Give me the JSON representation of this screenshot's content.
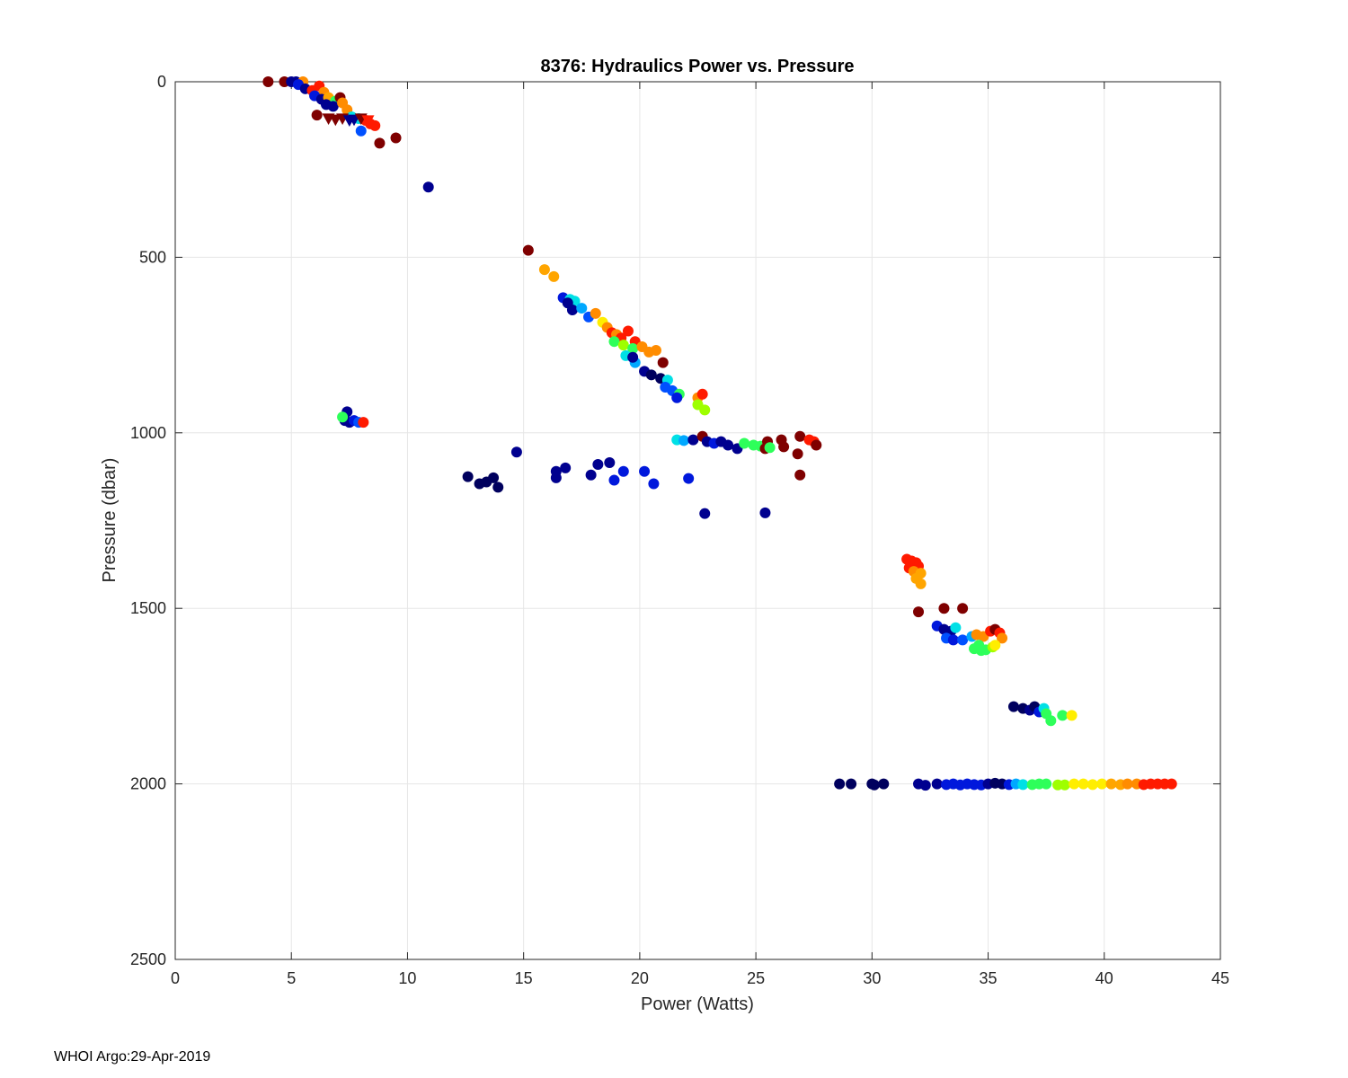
{
  "footer": "WHOI Argo:29-Apr-2019",
  "chart_data": {
    "type": "scatter",
    "title": "8376: Hydraulics Power vs. Pressure",
    "xlabel": "Power (Watts)",
    "ylabel": "Pressure (dbar)",
    "xlim": [
      0,
      45
    ],
    "ylim": [
      0,
      2500
    ],
    "y_reversed": true,
    "xticks": [
      0,
      5,
      10,
      15,
      20,
      25,
      30,
      35,
      40,
      45
    ],
    "yticks": [
      0,
      500,
      1000,
      1500,
      2000,
      2500
    ],
    "grid": true,
    "colors": {
      "darkred": "#7f0000",
      "red": "#ff1a00",
      "orange": "#ff8c00",
      "amber": "#ffa500",
      "yellow": "#ffee00",
      "lime": "#9eff00",
      "green": "#2eff5a",
      "cyan": "#00ffd5",
      "teal": "#00e0e6",
      "sky": "#00a8ff",
      "blue": "#0050ff",
      "royal": "#0018dc",
      "navy": "#00008f",
      "midnight": "#00005e"
    },
    "points": [
      {
        "x": 4.0,
        "y": 0,
        "c": "darkred"
      },
      {
        "x": 4.7,
        "y": 0,
        "c": "darkred"
      },
      {
        "x": 5.0,
        "y": 0,
        "c": "navy"
      },
      {
        "x": 5.2,
        "y": 0,
        "c": "navy"
      },
      {
        "x": 5.5,
        "y": 0,
        "c": "orange"
      },
      {
        "x": 5.3,
        "y": 8,
        "c": "royal"
      },
      {
        "x": 5.6,
        "y": 20,
        "c": "navy"
      },
      {
        "x": 5.9,
        "y": 25,
        "c": "red"
      },
      {
        "x": 6.2,
        "y": 12,
        "c": "red"
      },
      {
        "x": 6.4,
        "y": 30,
        "c": "orange"
      },
      {
        "x": 6.0,
        "y": 40,
        "c": "royal"
      },
      {
        "x": 6.3,
        "y": 50,
        "c": "navy"
      },
      {
        "x": 6.6,
        "y": 45,
        "c": "amber"
      },
      {
        "x": 6.9,
        "y": 55,
        "c": "green"
      },
      {
        "x": 7.1,
        "y": 45,
        "c": "darkred"
      },
      {
        "x": 6.5,
        "y": 65,
        "c": "navy"
      },
      {
        "x": 6.8,
        "y": 70,
        "c": "navy"
      },
      {
        "x": 7.2,
        "y": 60,
        "c": "orange"
      },
      {
        "x": 7.4,
        "y": 80,
        "c": "orange"
      },
      {
        "x": 6.1,
        "y": 95,
        "c": "darkred"
      },
      {
        "x": 7.6,
        "y": 100,
        "c": "teal"
      },
      {
        "x": 7.9,
        "y": 105,
        "c": "teal"
      },
      {
        "x": 8.2,
        "y": 110,
        "c": "red"
      },
      {
        "x": 8.4,
        "y": 120,
        "c": "red"
      },
      {
        "x": 8.6,
        "y": 125,
        "c": "red"
      },
      {
        "x": 8.0,
        "y": 140,
        "c": "blue"
      },
      {
        "x": 9.5,
        "y": 160,
        "c": "darkred"
      },
      {
        "x": 8.8,
        "y": 175,
        "c": "darkred"
      },
      {
        "x": 10.9,
        "y": 300,
        "c": "navy"
      },
      {
        "x": 7.4,
        "y": 940,
        "c": "navy"
      },
      {
        "x": 7.3,
        "y": 965,
        "c": "navy"
      },
      {
        "x": 7.5,
        "y": 970,
        "c": "navy"
      },
      {
        "x": 7.7,
        "y": 965,
        "c": "royal"
      },
      {
        "x": 7.9,
        "y": 970,
        "c": "blue"
      },
      {
        "x": 8.1,
        "y": 970,
        "c": "red"
      },
      {
        "x": 7.2,
        "y": 955,
        "c": "green"
      },
      {
        "x": 15.2,
        "y": 480,
        "c": "darkred"
      },
      {
        "x": 15.9,
        "y": 535,
        "c": "amber"
      },
      {
        "x": 16.3,
        "y": 555,
        "c": "amber"
      },
      {
        "x": 16.7,
        "y": 615,
        "c": "royal"
      },
      {
        "x": 17.0,
        "y": 620,
        "c": "teal"
      },
      {
        "x": 17.2,
        "y": 625,
        "c": "teal"
      },
      {
        "x": 16.9,
        "y": 630,
        "c": "navy"
      },
      {
        "x": 17.1,
        "y": 650,
        "c": "navy"
      },
      {
        "x": 17.5,
        "y": 645,
        "c": "sky"
      },
      {
        "x": 17.8,
        "y": 670,
        "c": "blue"
      },
      {
        "x": 18.1,
        "y": 660,
        "c": "orange"
      },
      {
        "x": 18.4,
        "y": 685,
        "c": "yellow"
      },
      {
        "x": 18.6,
        "y": 700,
        "c": "orange"
      },
      {
        "x": 18.8,
        "y": 715,
        "c": "red"
      },
      {
        "x": 19.0,
        "y": 720,
        "c": "orange"
      },
      {
        "x": 19.2,
        "y": 730,
        "c": "red"
      },
      {
        "x": 19.5,
        "y": 710,
        "c": "red"
      },
      {
        "x": 19.8,
        "y": 740,
        "c": "red"
      },
      {
        "x": 18.9,
        "y": 740,
        "c": "green"
      },
      {
        "x": 19.3,
        "y": 750,
        "c": "lime"
      },
      {
        "x": 19.7,
        "y": 760,
        "c": "green"
      },
      {
        "x": 20.1,
        "y": 755,
        "c": "orange"
      },
      {
        "x": 20.4,
        "y": 770,
        "c": "orange"
      },
      {
        "x": 20.7,
        "y": 765,
        "c": "orange"
      },
      {
        "x": 19.4,
        "y": 780,
        "c": "teal"
      },
      {
        "x": 19.8,
        "y": 800,
        "c": "sky"
      },
      {
        "x": 19.7,
        "y": 785,
        "c": "navy"
      },
      {
        "x": 21.0,
        "y": 800,
        "c": "darkred"
      },
      {
        "x": 20.2,
        "y": 825,
        "c": "navy"
      },
      {
        "x": 20.5,
        "y": 835,
        "c": "midnight"
      },
      {
        "x": 20.9,
        "y": 845,
        "c": "midnight"
      },
      {
        "x": 21.2,
        "y": 850,
        "c": "teal"
      },
      {
        "x": 21.1,
        "y": 870,
        "c": "blue"
      },
      {
        "x": 21.4,
        "y": 880,
        "c": "blue"
      },
      {
        "x": 21.7,
        "y": 890,
        "c": "green"
      },
      {
        "x": 21.6,
        "y": 900,
        "c": "royal"
      },
      {
        "x": 22.5,
        "y": 900,
        "c": "orange"
      },
      {
        "x": 22.7,
        "y": 890,
        "c": "red"
      },
      {
        "x": 22.5,
        "y": 920,
        "c": "lime"
      },
      {
        "x": 22.8,
        "y": 935,
        "c": "lime"
      },
      {
        "x": 21.6,
        "y": 1020,
        "c": "teal"
      },
      {
        "x": 21.9,
        "y": 1022,
        "c": "sky"
      },
      {
        "x": 22.3,
        "y": 1020,
        "c": "navy"
      },
      {
        "x": 22.7,
        "y": 1010,
        "c": "darkred"
      },
      {
        "x": 22.9,
        "y": 1025,
        "c": "navy"
      },
      {
        "x": 23.2,
        "y": 1030,
        "c": "royal"
      },
      {
        "x": 23.5,
        "y": 1025,
        "c": "navy"
      },
      {
        "x": 23.8,
        "y": 1035,
        "c": "navy"
      },
      {
        "x": 24.2,
        "y": 1045,
        "c": "navy"
      },
      {
        "x": 24.5,
        "y": 1030,
        "c": "green"
      },
      {
        "x": 24.9,
        "y": 1035,
        "c": "green"
      },
      {
        "x": 25.2,
        "y": 1038,
        "c": "green"
      },
      {
        "x": 25.4,
        "y": 1045,
        "c": "darkred"
      },
      {
        "x": 25.5,
        "y": 1025,
        "c": "darkred"
      },
      {
        "x": 25.6,
        "y": 1042,
        "c": "green"
      },
      {
        "x": 26.1,
        "y": 1020,
        "c": "darkred"
      },
      {
        "x": 26.2,
        "y": 1040,
        "c": "darkred"
      },
      {
        "x": 26.8,
        "y": 1060,
        "c": "darkred"
      },
      {
        "x": 26.9,
        "y": 1010,
        "c": "darkred"
      },
      {
        "x": 27.3,
        "y": 1020,
        "c": "red"
      },
      {
        "x": 27.5,
        "y": 1025,
        "c": "red"
      },
      {
        "x": 27.6,
        "y": 1035,
        "c": "darkred"
      },
      {
        "x": 26.9,
        "y": 1120,
        "c": "darkred"
      },
      {
        "x": 14.7,
        "y": 1055,
        "c": "navy"
      },
      {
        "x": 12.6,
        "y": 1125,
        "c": "midnight"
      },
      {
        "x": 13.1,
        "y": 1145,
        "c": "midnight"
      },
      {
        "x": 13.4,
        "y": 1140,
        "c": "midnight"
      },
      {
        "x": 13.7,
        "y": 1128,
        "c": "midnight"
      },
      {
        "x": 13.9,
        "y": 1155,
        "c": "midnight"
      },
      {
        "x": 16.4,
        "y": 1110,
        "c": "navy"
      },
      {
        "x": 16.4,
        "y": 1128,
        "c": "navy"
      },
      {
        "x": 16.8,
        "y": 1100,
        "c": "navy"
      },
      {
        "x": 17.9,
        "y": 1120,
        "c": "navy"
      },
      {
        "x": 18.2,
        "y": 1090,
        "c": "navy"
      },
      {
        "x": 18.7,
        "y": 1085,
        "c": "navy"
      },
      {
        "x": 18.9,
        "y": 1135,
        "c": "royal"
      },
      {
        "x": 19.3,
        "y": 1110,
        "c": "royal"
      },
      {
        "x": 20.2,
        "y": 1110,
        "c": "royal"
      },
      {
        "x": 20.6,
        "y": 1145,
        "c": "royal"
      },
      {
        "x": 22.1,
        "y": 1130,
        "c": "royal"
      },
      {
        "x": 22.8,
        "y": 1230,
        "c": "navy"
      },
      {
        "x": 25.4,
        "y": 1228,
        "c": "navy"
      },
      {
        "x": 31.5,
        "y": 1360,
        "c": "red"
      },
      {
        "x": 31.7,
        "y": 1365,
        "c": "red"
      },
      {
        "x": 31.9,
        "y": 1370,
        "c": "red"
      },
      {
        "x": 32.0,
        "y": 1380,
        "c": "red"
      },
      {
        "x": 31.6,
        "y": 1385,
        "c": "red"
      },
      {
        "x": 31.8,
        "y": 1395,
        "c": "orange"
      },
      {
        "x": 32.1,
        "y": 1400,
        "c": "amber"
      },
      {
        "x": 31.9,
        "y": 1415,
        "c": "amber"
      },
      {
        "x": 32.1,
        "y": 1430,
        "c": "amber"
      },
      {
        "x": 32.0,
        "y": 1510,
        "c": "darkred"
      },
      {
        "x": 33.1,
        "y": 1500,
        "c": "darkred"
      },
      {
        "x": 33.9,
        "y": 1500,
        "c": "darkred"
      },
      {
        "x": 32.8,
        "y": 1550,
        "c": "royal"
      },
      {
        "x": 33.1,
        "y": 1560,
        "c": "navy"
      },
      {
        "x": 33.4,
        "y": 1565,
        "c": "navy"
      },
      {
        "x": 33.6,
        "y": 1555,
        "c": "teal"
      },
      {
        "x": 33.2,
        "y": 1585,
        "c": "blue"
      },
      {
        "x": 33.5,
        "y": 1590,
        "c": "royal"
      },
      {
        "x": 33.9,
        "y": 1590,
        "c": "blue"
      },
      {
        "x": 34.3,
        "y": 1580,
        "c": "sky"
      },
      {
        "x": 34.5,
        "y": 1575,
        "c": "orange"
      },
      {
        "x": 34.8,
        "y": 1580,
        "c": "orange"
      },
      {
        "x": 35.1,
        "y": 1565,
        "c": "red"
      },
      {
        "x": 35.3,
        "y": 1560,
        "c": "darkred"
      },
      {
        "x": 35.5,
        "y": 1570,
        "c": "red"
      },
      {
        "x": 35.6,
        "y": 1585,
        "c": "orange"
      },
      {
        "x": 34.4,
        "y": 1615,
        "c": "green"
      },
      {
        "x": 34.7,
        "y": 1620,
        "c": "green"
      },
      {
        "x": 34.9,
        "y": 1618,
        "c": "green"
      },
      {
        "x": 35.2,
        "y": 1610,
        "c": "lime"
      },
      {
        "x": 35.3,
        "y": 1605,
        "c": "yellow"
      },
      {
        "x": 34.6,
        "y": 1605,
        "c": "green"
      },
      {
        "x": 36.1,
        "y": 1780,
        "c": "midnight"
      },
      {
        "x": 36.5,
        "y": 1785,
        "c": "midnight"
      },
      {
        "x": 36.8,
        "y": 1790,
        "c": "navy"
      },
      {
        "x": 37.0,
        "y": 1780,
        "c": "midnight"
      },
      {
        "x": 37.2,
        "y": 1795,
        "c": "royal"
      },
      {
        "x": 37.4,
        "y": 1785,
        "c": "teal"
      },
      {
        "x": 37.5,
        "y": 1800,
        "c": "green"
      },
      {
        "x": 37.7,
        "y": 1820,
        "c": "green"
      },
      {
        "x": 38.2,
        "y": 1805,
        "c": "green"
      },
      {
        "x": 38.6,
        "y": 1805,
        "c": "yellow"
      },
      {
        "x": 28.6,
        "y": 2000,
        "c": "midnight"
      },
      {
        "x": 29.1,
        "y": 2000,
        "c": "midnight"
      },
      {
        "x": 30.0,
        "y": 2000,
        "c": "midnight"
      },
      {
        "x": 30.1,
        "y": 2003,
        "c": "midnight"
      },
      {
        "x": 30.5,
        "y": 2000,
        "c": "midnight"
      },
      {
        "x": 32.0,
        "y": 2000,
        "c": "navy"
      },
      {
        "x": 32.3,
        "y": 2004,
        "c": "navy"
      },
      {
        "x": 32.8,
        "y": 2000,
        "c": "navy"
      },
      {
        "x": 33.2,
        "y": 2002,
        "c": "royal"
      },
      {
        "x": 33.5,
        "y": 2000,
        "c": "royal"
      },
      {
        "x": 33.8,
        "y": 2003,
        "c": "royal"
      },
      {
        "x": 34.1,
        "y": 2000,
        "c": "royal"
      },
      {
        "x": 34.4,
        "y": 2002,
        "c": "royal"
      },
      {
        "x": 34.7,
        "y": 2003,
        "c": "royal"
      },
      {
        "x": 35.0,
        "y": 2000,
        "c": "navy"
      },
      {
        "x": 35.3,
        "y": 1998,
        "c": "midnight"
      },
      {
        "x": 35.6,
        "y": 2000,
        "c": "midnight"
      },
      {
        "x": 35.9,
        "y": 2002,
        "c": "royal"
      },
      {
        "x": 36.2,
        "y": 2000,
        "c": "sky"
      },
      {
        "x": 36.5,
        "y": 2002,
        "c": "teal"
      },
      {
        "x": 36.9,
        "y": 2002,
        "c": "green"
      },
      {
        "x": 37.2,
        "y": 2000,
        "c": "green"
      },
      {
        "x": 37.5,
        "y": 2000,
        "c": "green"
      },
      {
        "x": 38.0,
        "y": 2003,
        "c": "lime"
      },
      {
        "x": 38.3,
        "y": 2003,
        "c": "lime"
      },
      {
        "x": 38.7,
        "y": 2000,
        "c": "yellow"
      },
      {
        "x": 39.1,
        "y": 2000,
        "c": "yellow"
      },
      {
        "x": 39.5,
        "y": 2002,
        "c": "yellow"
      },
      {
        "x": 39.9,
        "y": 2000,
        "c": "yellow"
      },
      {
        "x": 40.3,
        "y": 2000,
        "c": "amber"
      },
      {
        "x": 40.7,
        "y": 2002,
        "c": "amber"
      },
      {
        "x": 41.0,
        "y": 2000,
        "c": "orange"
      },
      {
        "x": 41.4,
        "y": 2000,
        "c": "orange"
      },
      {
        "x": 41.7,
        "y": 2002,
        "c": "red"
      },
      {
        "x": 42.0,
        "y": 2000,
        "c": "red"
      },
      {
        "x": 42.3,
        "y": 2000,
        "c": "red"
      },
      {
        "x": 42.6,
        "y": 2000,
        "c": "red"
      },
      {
        "x": 42.9,
        "y": 2000,
        "c": "red"
      }
    ],
    "triangles": [
      {
        "x": 6.6,
        "y": 105,
        "c": "darkred"
      },
      {
        "x": 6.9,
        "y": 108,
        "c": "darkred"
      },
      {
        "x": 7.2,
        "y": 105,
        "c": "darkred"
      },
      {
        "x": 7.5,
        "y": 110,
        "c": "navy"
      },
      {
        "x": 7.7,
        "y": 108,
        "c": "navy"
      },
      {
        "x": 8.0,
        "y": 105,
        "c": "darkred"
      },
      {
        "x": 8.3,
        "y": 110,
        "c": "red"
      }
    ]
  }
}
